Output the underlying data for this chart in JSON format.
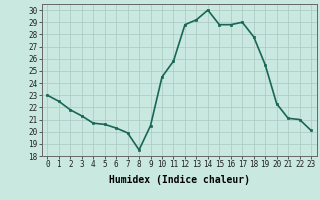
{
  "x": [
    0,
    1,
    2,
    3,
    4,
    5,
    6,
    7,
    8,
    9,
    10,
    11,
    12,
    13,
    14,
    15,
    16,
    17,
    18,
    19,
    20,
    21,
    22,
    23
  ],
  "y": [
    23,
    22.5,
    21.8,
    21.3,
    20.7,
    20.6,
    20.3,
    19.9,
    18.5,
    20.5,
    24.5,
    25.8,
    28.8,
    29.2,
    30.0,
    28.8,
    28.8,
    29.0,
    27.8,
    25.5,
    22.3,
    21.1,
    21.0,
    20.1
  ],
  "line_color": "#1a6655",
  "marker": "s",
  "marker_size": 2,
  "bg_color": "#c8e8e0",
  "grid_color": "#a8c8c0",
  "xlabel": "Humidex (Indice chaleur)",
  "ylim": [
    18,
    30.5
  ],
  "xlim": [
    -0.5,
    23.5
  ],
  "yticks": [
    18,
    19,
    20,
    21,
    22,
    23,
    24,
    25,
    26,
    27,
    28,
    29,
    30
  ],
  "xticks": [
    0,
    1,
    2,
    3,
    4,
    5,
    6,
    7,
    8,
    9,
    10,
    11,
    12,
    13,
    14,
    15,
    16,
    17,
    18,
    19,
    20,
    21,
    22,
    23
  ],
  "tick_fontsize": 5.5,
  "xlabel_fontsize": 7,
  "line_width": 1.2
}
